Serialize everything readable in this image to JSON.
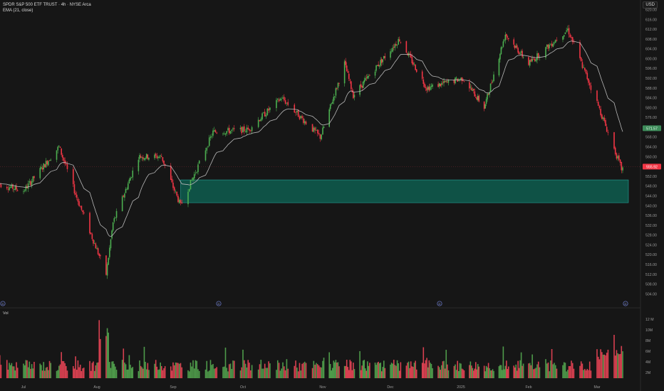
{
  "header": {
    "title": "SPDR S&P 500 ETF TRUST · 4h · NYSE Arca",
    "indicator": "EMA (21, close)",
    "currency": "USD",
    "volume_label": "Vol"
  },
  "colors": {
    "background": "#161616",
    "up": "#26a69a",
    "down": "#ef5350",
    "up_candle": "#4caf50",
    "down_candle": "#f23645",
    "vol_up": "#4e9a4a",
    "vol_down": "#d84050",
    "ema": "#b8b8b8",
    "zone": "#0f5246",
    "zone_border": "#26a69a",
    "ema_label": "#3d8c5a",
    "price_label": "#f23645",
    "grid": "#1f1f1f",
    "axis_text": "#9a9a9a"
  },
  "price_axis": {
    "ticks": [
      "620.00",
      "616.00",
      "612.00",
      "608.00",
      "604.00",
      "600.00",
      "596.00",
      "592.00",
      "588.00",
      "584.00",
      "580.00",
      "576.00",
      "572.00",
      "568.00",
      "564.00",
      "560.00",
      "556.00",
      "552.00",
      "548.00",
      "544.00",
      "540.00",
      "536.00",
      "532.00",
      "528.00",
      "524.00",
      "520.00",
      "516.00",
      "512.00",
      "508.00",
      "504.00"
    ]
  },
  "volume_axis": {
    "ticks": [
      "12 M",
      "10M",
      "8M",
      "6M",
      "4M",
      "2M"
    ]
  },
  "time_axis": {
    "labels": [
      "Jul",
      "Aug",
      "Sep",
      "Oct",
      "Nov",
      "Dec",
      "2025",
      "Feb",
      "Mar"
    ]
  },
  "event_markers": [
    "D",
    "D",
    "D",
    "D"
  ],
  "chart_data": {
    "type": "candlestick",
    "title": "SPDR S&P 500 ETF TRUST · 4h · NYSE Arca",
    "ylim": [
      502,
      622
    ],
    "anchors": [
      {
        "date": "2024-06-20",
        "price": 549
      },
      {
        "date": "2024-07-01",
        "price": 546
      },
      {
        "date": "2024-07-16",
        "price": 564
      },
      {
        "date": "2024-07-24",
        "price": 542
      },
      {
        "date": "2024-08-05",
        "price": 512
      },
      {
        "date": "2024-08-08",
        "price": 533
      },
      {
        "date": "2024-08-19",
        "price": 560
      },
      {
        "date": "2024-08-29",
        "price": 560
      },
      {
        "date": "2024-09-06",
        "price": 540
      },
      {
        "date": "2024-09-19",
        "price": 570
      },
      {
        "date": "2024-10-03",
        "price": 571
      },
      {
        "date": "2024-10-16",
        "price": 584
      },
      {
        "date": "2024-10-31",
        "price": 568
      },
      {
        "date": "2024-11-11",
        "price": 598
      },
      {
        "date": "2024-11-15",
        "price": 585
      },
      {
        "date": "2024-12-06",
        "price": 608
      },
      {
        "date": "2024-12-18",
        "price": 588
      },
      {
        "date": "2025-01-03",
        "price": 592
      },
      {
        "date": "2025-01-13",
        "price": 580
      },
      {
        "date": "2025-01-23",
        "price": 610
      },
      {
        "date": "2025-02-03",
        "price": 598
      },
      {
        "date": "2025-02-19",
        "price": 612
      },
      {
        "date": "2025-03-03",
        "price": 582
      },
      {
        "date": "2025-03-13",
        "price": 555
      }
    ],
    "ema_label": "571.57",
    "last_price": "555.92",
    "zone": {
      "high": 550.5,
      "low": 541.2,
      "start": "2024-09-06"
    },
    "volume_scale": "M"
  }
}
